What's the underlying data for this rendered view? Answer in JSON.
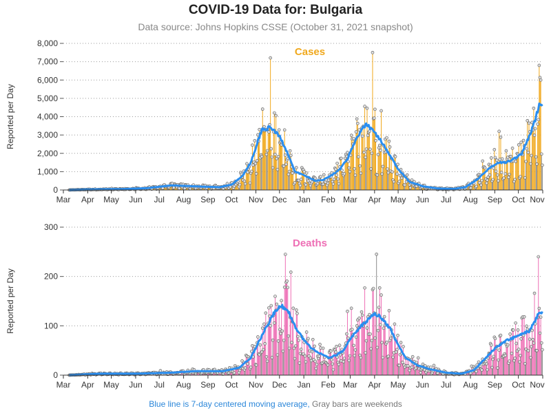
{
  "title": "COVID-19 Data for: Bulgaria",
  "subtitle": "Data source: Johns Hopkins CSSE (October 31, 2021 snapshot)",
  "footnote": {
    "blue_part": "Blue line is 7-day centered moving average,",
    "gray_part": "Gray bars are weekends"
  },
  "colors": {
    "cases_bar": "#f0a81c",
    "cases_title": "#f0a81c",
    "deaths_bar": "#ee6fb5",
    "deaths_title": "#ee6fb5",
    "weekend_bar": "#8c8c8c",
    "moving_average": "#2a8ef0"
  },
  "chart_data": [
    {
      "type": "bar",
      "title": "Cases",
      "ylabel": "Reported per Day",
      "ylim": [
        0,
        8000
      ],
      "yticks": [
        0,
        1000,
        2000,
        3000,
        4000,
        5000,
        6000,
        7000,
        8000
      ],
      "ytick_labels": [
        "0",
        "1,000",
        "2,000",
        "3,000",
        "4,000",
        "5,000",
        "6,000",
        "7,000",
        "8,000"
      ],
      "x_range": [
        "2020-03-01",
        "2021-10-31"
      ],
      "xtick_labels": [
        "Mar",
        "Apr",
        "May",
        "Jun",
        "Jul",
        "Aug",
        "Sep",
        "Oct",
        "Nov",
        "Dec",
        "Jan",
        "Feb",
        "Mar",
        "Apr",
        "May",
        "Jun",
        "Jul",
        "Aug",
        "Sep",
        "Oct",
        "Nov"
      ],
      "grid": "horizontal dotted",
      "moving_average_anchors": [
        [
          "2020-03-08",
          0
        ],
        [
          "2020-04-01",
          30
        ],
        [
          "2020-05-15",
          50
        ],
        [
          "2020-06-15",
          100
        ],
        [
          "2020-07-15",
          250
        ],
        [
          "2020-08-15",
          200
        ],
        [
          "2020-09-15",
          150
        ],
        [
          "2020-10-01",
          300
        ],
        [
          "2020-10-15",
          800
        ],
        [
          "2020-10-25",
          1500
        ],
        [
          "2020-11-01",
          2400
        ],
        [
          "2020-11-08",
          3300
        ],
        [
          "2020-11-20",
          3400
        ],
        [
          "2020-12-01",
          2900
        ],
        [
          "2020-12-10",
          2100
        ],
        [
          "2020-12-20",
          1000
        ],
        [
          "2021-01-01",
          800
        ],
        [
          "2021-01-15",
          500
        ],
        [
          "2021-01-25",
          550
        ],
        [
          "2021-02-05",
          800
        ],
        [
          "2021-02-15",
          1100
        ],
        [
          "2021-02-25",
          1700
        ],
        [
          "2021-03-05",
          2500
        ],
        [
          "2021-03-15",
          3300
        ],
        [
          "2021-03-22",
          3600
        ],
        [
          "2021-04-01",
          3100
        ],
        [
          "2021-04-10",
          2600
        ],
        [
          "2021-04-20",
          1900
        ],
        [
          "2021-05-01",
          1100
        ],
        [
          "2021-05-15",
          450
        ],
        [
          "2021-06-01",
          200
        ],
        [
          "2021-06-20",
          80
        ],
        [
          "2021-07-10",
          60
        ],
        [
          "2021-07-25",
          150
        ],
        [
          "2021-08-10",
          600
        ],
        [
          "2021-08-25",
          1200
        ],
        [
          "2021-09-05",
          1500
        ],
        [
          "2021-09-15",
          1500
        ],
        [
          "2021-09-25",
          1700
        ],
        [
          "2021-10-05",
          2000
        ],
        [
          "2021-10-15",
          3000
        ],
        [
          "2021-10-22",
          3800
        ],
        [
          "2021-10-27",
          4700
        ],
        [
          "2021-10-31",
          4600
        ]
      ],
      "peak_points": [
        [
          "2021-03-29",
          7500
        ],
        [
          "2021-10-27",
          6800
        ]
      ]
    },
    {
      "type": "bar",
      "title": "Deaths",
      "ylabel": "Reported per Day",
      "ylim": [
        0,
        300
      ],
      "yticks": [
        0,
        100,
        200,
        300
      ],
      "ytick_labels": [
        "0",
        "100",
        "200",
        "300"
      ],
      "x_range": [
        "2020-03-01",
        "2021-10-31"
      ],
      "xtick_labels": [
        "Mar",
        "Apr",
        "May",
        "Jun",
        "Jul",
        "Aug",
        "Sep",
        "Oct",
        "Nov",
        "Dec",
        "Jan",
        "Feb",
        "Mar",
        "Apr",
        "May",
        "Jun",
        "Jul",
        "Aug",
        "Sep",
        "Oct",
        "Nov"
      ],
      "grid": "horizontal dotted",
      "moving_average_anchors": [
        [
          "2020-03-08",
          0
        ],
        [
          "2020-04-15",
          3
        ],
        [
          "2020-06-01",
          3
        ],
        [
          "2020-07-15",
          5
        ],
        [
          "2020-08-15",
          8
        ],
        [
          "2020-09-20",
          8
        ],
        [
          "2020-10-10",
          15
        ],
        [
          "2020-10-25",
          35
        ],
        [
          "2020-11-05",
          70
        ],
        [
          "2020-11-15",
          100
        ],
        [
          "2020-11-25",
          130
        ],
        [
          "2020-12-03",
          140
        ],
        [
          "2020-12-10",
          135
        ],
        [
          "2020-12-20",
          100
        ],
        [
          "2021-01-01",
          70
        ],
        [
          "2021-01-10",
          55
        ],
        [
          "2021-01-20",
          45
        ],
        [
          "2021-02-01",
          35
        ],
        [
          "2021-02-10",
          40
        ],
        [
          "2021-02-20",
          50
        ],
        [
          "2021-03-01",
          75
        ],
        [
          "2021-03-15",
          100
        ],
        [
          "2021-03-25",
          115
        ],
        [
          "2021-04-01",
          125
        ],
        [
          "2021-04-10",
          115
        ],
        [
          "2021-04-20",
          95
        ],
        [
          "2021-05-01",
          60
        ],
        [
          "2021-05-10",
          35
        ],
        [
          "2021-05-25",
          20
        ],
        [
          "2021-06-10",
          12
        ],
        [
          "2021-07-01",
          5
        ],
        [
          "2021-07-20",
          3
        ],
        [
          "2021-08-05",
          10
        ],
        [
          "2021-08-20",
          35
        ],
        [
          "2021-09-01",
          55
        ],
        [
          "2021-09-15",
          70
        ],
        [
          "2021-10-01",
          80
        ],
        [
          "2021-10-15",
          90
        ],
        [
          "2021-10-25",
          120
        ],
        [
          "2021-10-31",
          130
        ]
      ],
      "peak_points": [
        [
          "2021-04-03",
          245
        ],
        [
          "2021-10-26",
          240
        ]
      ]
    }
  ]
}
